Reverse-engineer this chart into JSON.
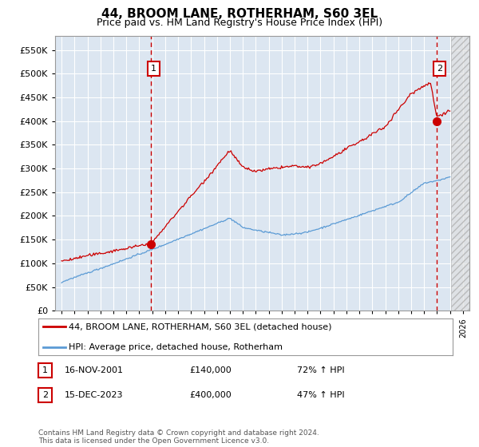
{
  "title": "44, BROOM LANE, ROTHERHAM, S60 3EL",
  "subtitle": "Price paid vs. HM Land Registry's House Price Index (HPI)",
  "legend_line1": "44, BROOM LANE, ROTHERHAM, S60 3EL (detached house)",
  "legend_line2": "HPI: Average price, detached house, Rotherham",
  "annotation1_label": "1",
  "annotation1_date": "16-NOV-2001",
  "annotation1_price": "£140,000",
  "annotation1_hpi": "72% ↑ HPI",
  "annotation2_label": "2",
  "annotation2_date": "15-DEC-2023",
  "annotation2_price": "£400,000",
  "annotation2_hpi": "47% ↑ HPI",
  "footer": "Contains HM Land Registry data © Crown copyright and database right 2024.\nThis data is licensed under the Open Government Licence v3.0.",
  "red_line_color": "#cc0000",
  "blue_line_color": "#5b9bd5",
  "plot_bg_color": "#dce6f1",
  "grid_color": "#ffffff",
  "vline_color": "#cc0000",
  "marker1_x": 2001.88,
  "marker1_y": 140000,
  "marker2_x": 2023.96,
  "marker2_y": 400000,
  "ylim": [
    0,
    580000
  ],
  "xlim_start": 1994.5,
  "xlim_end": 2026.5,
  "hatch_start": 2025.08,
  "hatch_end": 2026.5
}
